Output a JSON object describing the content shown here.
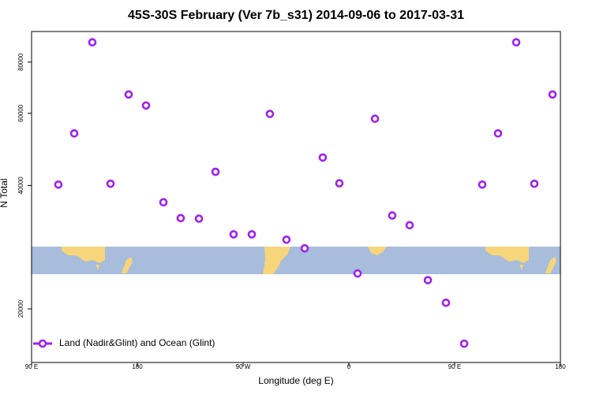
{
  "chart_data": {
    "type": "scatter",
    "title": "45S-30S February (Ver 7b_s31)   2014-09-06 to 2017-03-31",
    "x_label": "Longitude (deg E)",
    "y_label": "N Total",
    "xlim": [
      90,
      540
    ],
    "xticks": [
      {
        "value": 90,
        "label": "90 E"
      },
      180,
      {
        "value": 270,
        "label": "90 W"
      },
      {
        "value": 360,
        "label": "0"
      },
      {
        "value": 450,
        "label": "90 E"
      },
      {
        "value": 540,
        "label": "180"
      }
    ],
    "ylim": [
      14800,
      95000
    ],
    "y_log": true,
    "yticks": [
      20000,
      40000,
      60000,
      80000
    ],
    "legend": "bottom-left",
    "x": [
      112.8,
      126.3,
      141.7,
      157.2,
      172.6,
      187.4,
      202.2,
      216.9,
      232.4,
      246.5,
      261.9,
      277.4,
      292.8,
      306.9,
      322.4,
      337.8,
      351.9,
      367.4,
      382.2,
      396.9,
      411.7,
      427.2,
      442.6,
      458.1,
      473.5,
      486.9,
      502.4,
      517.8,
      533.3
    ],
    "series": [
      {
        "name": "Land (Nadir&Glint) and Ocean (Glint)",
        "color": "#a020f0",
        "values": [
          40200,
          53600,
          89400,
          40400,
          66700,
          62700,
          36400,
          33300,
          33200,
          43200,
          30400,
          30400,
          59800,
          29500,
          28100,
          46800,
          40500,
          24400,
          58200,
          33800,
          32000,
          23500,
          20700,
          16450,
          40200,
          53600,
          89400,
          40400,
          66700
        ]
      }
    ]
  }
}
